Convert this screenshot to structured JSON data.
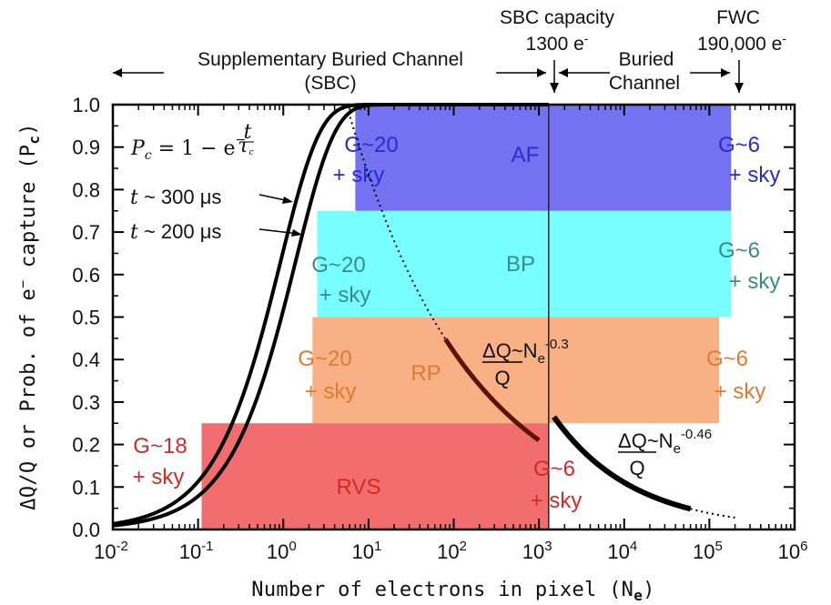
{
  "chart_data": {
    "type": "line",
    "xscale": "log",
    "xlim": [
      "10^-2",
      "10^6"
    ],
    "ylim": [
      0.0,
      1.0
    ],
    "xlabel": "Number of electrons in pixel (N",
    "xlabel_sub": "e",
    "xlabel_end": ")",
    "ylabel": "ΔQ/Q or Prob. of e",
    "ylabel_sup": "−",
    "ylabel_mid": " capture (P",
    "ylabel_sub": "c",
    "ylabel_end": ")",
    "xticks": [
      {
        "mant": "10",
        "exp": "-2",
        "value": 0.01
      },
      {
        "mant": "10",
        "exp": "-1",
        "value": 0.1
      },
      {
        "mant": "10",
        "exp": "0",
        "value": 1
      },
      {
        "mant": "10",
        "exp": "1",
        "value": 10
      },
      {
        "mant": "10",
        "exp": "2",
        "value": 100
      },
      {
        "mant": "10",
        "exp": "3",
        "value": 1000
      },
      {
        "mant": "10",
        "exp": "4",
        "value": 10000
      },
      {
        "mant": "10",
        "exp": "5",
        "value": 100000
      },
      {
        "mant": "10",
        "exp": "6",
        "value": 1000000
      }
    ],
    "yticks": [
      "0.0",
      "0.1",
      "0.2",
      "0.3",
      "0.4",
      "0.5",
      "0.6",
      "0.7",
      "0.8",
      "0.9",
      "1.0"
    ],
    "regions": [
      {
        "name": "AF",
        "x0": 7,
        "x1": 180000,
        "y0": 0.0,
        "y1": 1.0,
        "ybottom": 0.75,
        "color": "#5a5af0",
        "label_color": "#2a2ad0",
        "left_label": [
          "G~20",
          "+ sky"
        ],
        "right_label": [
          "G~6",
          "+ sky"
        ]
      },
      {
        "name": "BP",
        "x0": 2.5,
        "x1": 180000,
        "y1": 0.75,
        "ybottom": 0.5,
        "color": "#55ffff",
        "label_color": "#3a8a8a",
        "left_label": [
          "G~20",
          "+ sky"
        ],
        "right_label": [
          "G~6",
          "+ sky"
        ]
      },
      {
        "name": "RP",
        "x0": 2.2,
        "x1": 130000,
        "y1": 0.5,
        "ybottom": 0.25,
        "color": "#f8a574",
        "label_color": "#e07a30",
        "left_label": [
          "G~20",
          "+ sky"
        ],
        "right_label": [
          "G~6",
          "+ sky"
        ]
      },
      {
        "name": "RVS",
        "x0": 0.11,
        "x1": 1300,
        "y1": 0.25,
        "ybottom": 0.0,
        "color": "#f05a5a",
        "label_color": "#d02a2a",
        "left_label": [
          "G~18",
          "+ sky"
        ],
        "right_label": [
          "G~6",
          "+ sky"
        ]
      }
    ],
    "series": [
      {
        "name": "t ~ 200 μs",
        "tau_ratio": 1.0,
        "x0": 0.01,
        "x1": 1300
      },
      {
        "name": "t ~ 300 μs",
        "tau_ratio": 1.5,
        "x0": 0.01,
        "x1": 1300
      }
    ],
    "power_laws": [
      {
        "label": "ΔQ",
        "label_den": "Q",
        "label_rel": "~N",
        "sub": "e",
        "exp": "-0.3",
        "x_solid": [
          80,
          1000
        ],
        "x_dotted": [
          5,
          80
        ],
        "anchor_x": 1000,
        "anchor_y": 0.21
      },
      {
        "label": "ΔQ",
        "label_den": "Q",
        "label_rel": "~N",
        "sub": "e",
        "exp": "-0.46",
        "x_solid": [
          1500,
          60000
        ],
        "x_dotted": [
          60000,
          200000
        ],
        "anchor_x": 1500,
        "anchor_y": 0.265
      }
    ],
    "vlines": [
      {
        "x": 1300
      }
    ],
    "formula": {
      "lhs": "P",
      "lhs_sub": "c",
      "rhs": " = 1 − e",
      "exp_num": "t",
      "exp_den": "τ",
      "exp_den_sub": "c",
      "minus": "−"
    },
    "top_annotations": {
      "sbc_title": "Supplementary Buried Channel",
      "sbc_abbrev": "(SBC)",
      "sbc_cap_title": "SBC capacity",
      "sbc_cap_value": "1300 e",
      "sbc_cap_sup": "-",
      "bc_line1": "Buried",
      "bc_line2": "Channel",
      "fwc_title": "FWC",
      "fwc_value": "190,000 e",
      "fwc_sup": "-"
    },
    "colors": {
      "curve": "#000000",
      "power_curve": "#5a1500",
      "axis": "#000000"
    }
  }
}
